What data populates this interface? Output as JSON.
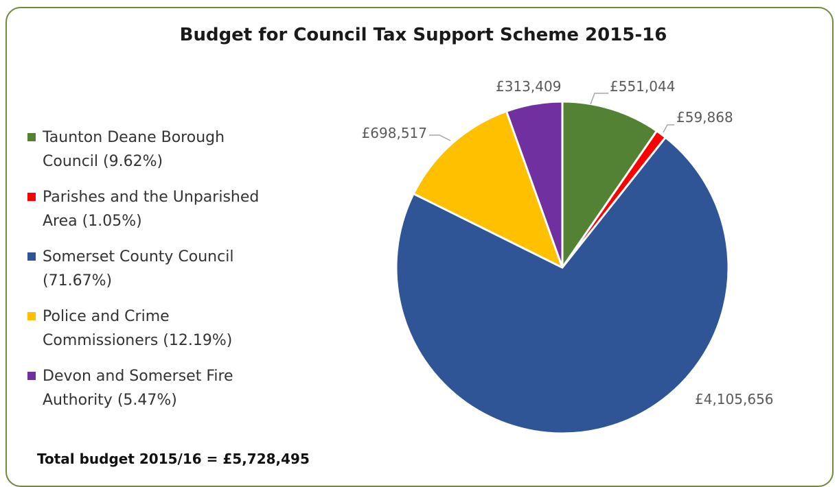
{
  "header_fragment": "",
  "title": "Budget for Council Tax Support Scheme 2015-16",
  "total_text": "Total budget 2015/16 = £5,728,495",
  "legend": [
    {
      "line1": "Taunton Deane Borough",
      "line2": "Council (9.62%)",
      "color": "#548235"
    },
    {
      "line1": "Parishes and the Unparished",
      "line2": "Area (1.05%)",
      "color": "#ff0000"
    },
    {
      "line1": "Somerset County Council",
      "line2": "(71.67%)",
      "color": "#2f5597"
    },
    {
      "line1": "Police and Crime",
      "line2": "Commissioners (12.19%)",
      "color": "#ffc000"
    },
    {
      "line1": "Devon and Somerset Fire",
      "line2": "Authority (5.47%)",
      "color": "#7030a0"
    }
  ],
  "chart_data": {
    "type": "pie",
    "title": "Budget for Council Tax Support Scheme 2015-16",
    "legend_position": "left",
    "slices": [
      {
        "name": "Taunton Deane Borough Council",
        "value": 551044,
        "label": "£551,044",
        "percent": 9.62,
        "color": "#548235"
      },
      {
        "name": "Parishes and the Unparished Area",
        "value": 59868,
        "label": "£59,868",
        "percent": 1.05,
        "color": "#ff0000"
      },
      {
        "name": "Somerset County Council",
        "value": 4105656,
        "label": "£4,105,656",
        "percent": 71.67,
        "color": "#2f5597"
      },
      {
        "name": "Police and Crime Commissioners",
        "value": 698517,
        "label": "£698,517",
        "percent": 12.19,
        "color": "#ffc000"
      },
      {
        "name": "Devon and Somerset Fire Authority",
        "value": 313409,
        "label": "£313,409",
        "percent": 5.47,
        "color": "#7030a0"
      }
    ]
  }
}
